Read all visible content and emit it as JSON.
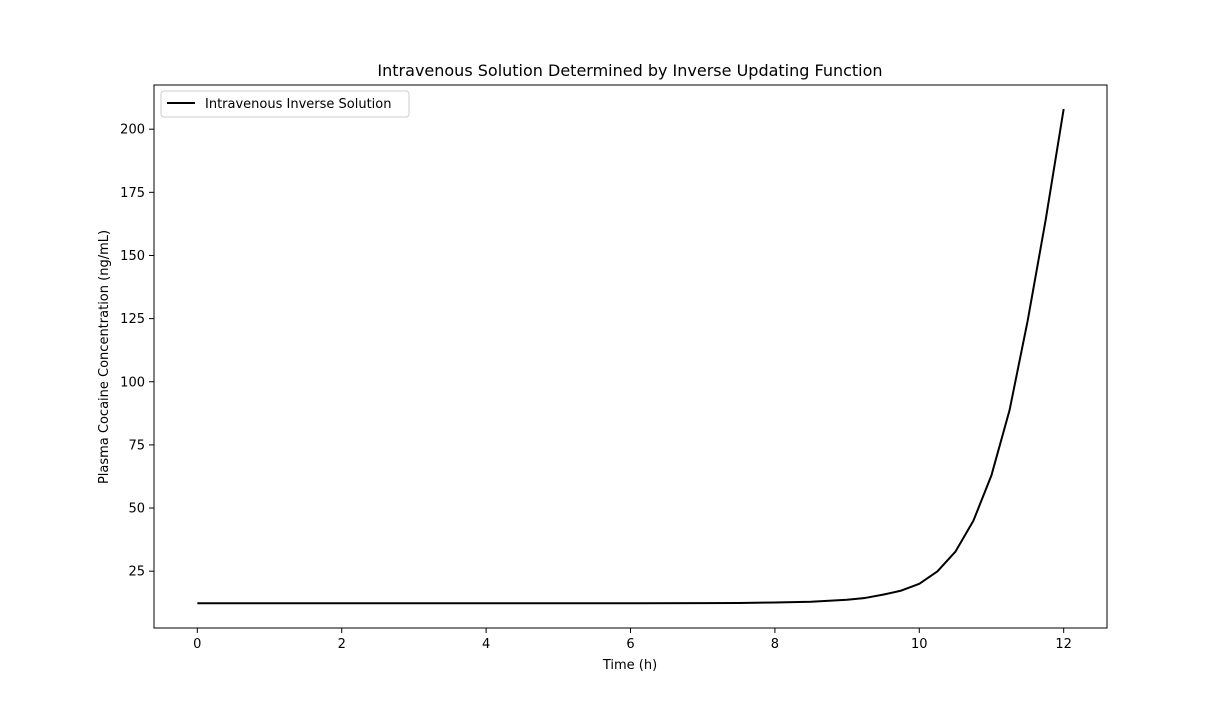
{
  "chart_data": {
    "type": "line",
    "title": "Intravenous Solution Determined by Inverse Updating Function",
    "xlabel": "Time (h)",
    "ylabel": "Plasma Cocaine Concentration (ng/mL)",
    "xlim": [
      -0.6,
      12.6
    ],
    "ylim": [
      2.5,
      217.5
    ],
    "xticks": [
      0,
      2,
      4,
      6,
      8,
      10,
      12
    ],
    "xtick_labels": [
      "0",
      "2",
      "4",
      "6",
      "8",
      "10",
      "12"
    ],
    "yticks": [
      25,
      50,
      75,
      100,
      125,
      150,
      175,
      200
    ],
    "ytick_labels": [
      "25",
      "50",
      "75",
      "100",
      "125",
      "150",
      "175",
      "200"
    ],
    "legend": {
      "position": "upper-left"
    },
    "grid": false,
    "series": [
      {
        "name": "Intravenous Inverse Solution",
        "color": "#000000",
        "x": [
          0,
          1,
          2,
          3,
          4,
          5,
          6,
          7,
          7.5,
          8,
          8.5,
          9,
          9.25,
          9.5,
          9.75,
          10,
          10.25,
          10.5,
          10.75,
          11,
          11.25,
          11.5,
          11.75,
          12
        ],
        "y": [
          12.3,
          12.3,
          12.3,
          12.3,
          12.3,
          12.3,
          12.3,
          12.35,
          12.4,
          12.6,
          12.9,
          13.7,
          14.4,
          15.7,
          17.3,
          20.0,
          24.9,
          32.7,
          45.0,
          63.0,
          88.7,
          124.0,
          164.0,
          208.0
        ]
      }
    ]
  }
}
